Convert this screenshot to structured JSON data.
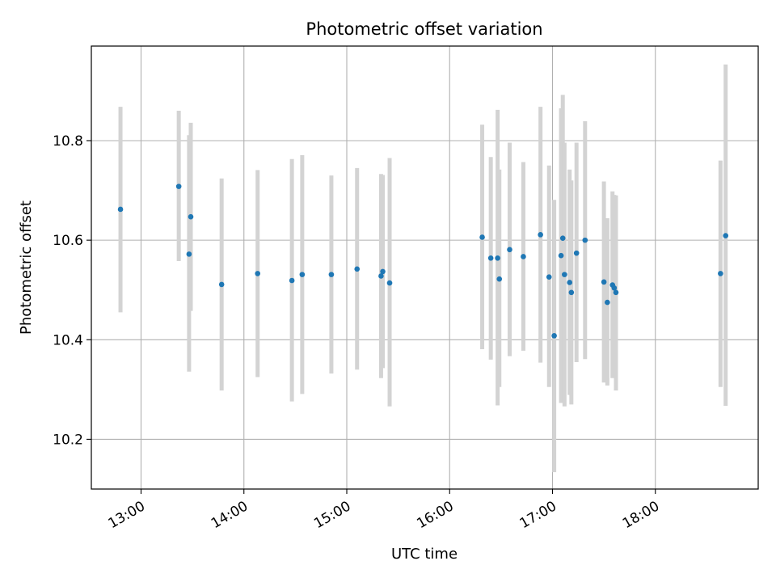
{
  "chart_data": {
    "type": "scatter",
    "title": "Photometric offset variation",
    "xlabel": "UTC time",
    "ylabel": "Photometric offset",
    "grid": true,
    "x_ticks": [
      "13:00",
      "14:00",
      "15:00",
      "16:00",
      "17:00",
      "18:00"
    ],
    "y_ticks": [
      "10.2",
      "10.4",
      "10.6",
      "10.8"
    ],
    "xlim": [
      "12:31",
      "19:00"
    ],
    "ylim": [
      10.1,
      10.99
    ],
    "point_color": "#1f77b4",
    "errorbar_color": "#d3d3d3",
    "points": [
      {
        "x": "12:48",
        "y": 10.662,
        "lo": 10.455,
        "hi": 10.868
      },
      {
        "x": "13:22",
        "y": 10.708,
        "lo": 10.558,
        "hi": 10.86
      },
      {
        "x": "13:28",
        "y": 10.572,
        "lo": 10.336,
        "hi": 10.811
      },
      {
        "x": "13:29",
        "y": 10.647,
        "lo": 10.458,
        "hi": 10.836
      },
      {
        "x": "13:47",
        "y": 10.511,
        "lo": 10.298,
        "hi": 10.724
      },
      {
        "x": "14:08",
        "y": 10.533,
        "lo": 10.325,
        "hi": 10.741
      },
      {
        "x": "14:28",
        "y": 10.519,
        "lo": 10.276,
        "hi": 10.763
      },
      {
        "x": "14:34",
        "y": 10.531,
        "lo": 10.291,
        "hi": 10.771
      },
      {
        "x": "14:51",
        "y": 10.531,
        "lo": 10.332,
        "hi": 10.73
      },
      {
        "x": "15:06",
        "y": 10.542,
        "lo": 10.34,
        "hi": 10.745
      },
      {
        "x": "15:20",
        "y": 10.528,
        "lo": 10.323,
        "hi": 10.733
      },
      {
        "x": "15:21",
        "y": 10.537,
        "lo": 10.343,
        "hi": 10.731
      },
      {
        "x": "15:25",
        "y": 10.514,
        "lo": 10.266,
        "hi": 10.765
      },
      {
        "x": "16:19",
        "y": 10.606,
        "lo": 10.381,
        "hi": 10.832
      },
      {
        "x": "16:24",
        "y": 10.564,
        "lo": 10.36,
        "hi": 10.767
      },
      {
        "x": "16:28",
        "y": 10.564,
        "lo": 10.268,
        "hi": 10.862
      },
      {
        "x": "16:29",
        "y": 10.522,
        "lo": 10.305,
        "hi": 10.742
      },
      {
        "x": "16:35",
        "y": 10.581,
        "lo": 10.367,
        "hi": 10.796
      },
      {
        "x": "16:43",
        "y": 10.567,
        "lo": 10.378,
        "hi": 10.757
      },
      {
        "x": "16:53",
        "y": 10.611,
        "lo": 10.354,
        "hi": 10.868
      },
      {
        "x": "16:58",
        "y": 10.526,
        "lo": 10.305,
        "hi": 10.75
      },
      {
        "x": "17:01",
        "y": 10.408,
        "lo": 10.134,
        "hi": 10.681
      },
      {
        "x": "17:05",
        "y": 10.569,
        "lo": 10.273,
        "hi": 10.865
      },
      {
        "x": "17:06",
        "y": 10.604,
        "lo": 10.317,
        "hi": 10.892
      },
      {
        "x": "17:07",
        "y": 10.531,
        "lo": 10.266,
        "hi": 10.796
      },
      {
        "x": "17:10",
        "y": 10.515,
        "lo": 10.289,
        "hi": 10.742
      },
      {
        "x": "17:11",
        "y": 10.495,
        "lo": 10.27,
        "hi": 10.72
      },
      {
        "x": "17:14",
        "y": 10.574,
        "lo": 10.355,
        "hi": 10.796
      },
      {
        "x": "17:19",
        "y": 10.6,
        "lo": 10.361,
        "hi": 10.839
      },
      {
        "x": "17:30",
        "y": 10.516,
        "lo": 10.314,
        "hi": 10.718
      },
      {
        "x": "17:32",
        "y": 10.475,
        "lo": 10.308,
        "hi": 10.644
      },
      {
        "x": "17:35",
        "y": 10.51,
        "lo": 10.323,
        "hi": 10.698
      },
      {
        "x": "17:36",
        "y": 10.504,
        "lo": 10.325,
        "hi": 10.691
      },
      {
        "x": "17:37",
        "y": 10.495,
        "lo": 10.298,
        "hi": 10.69
      },
      {
        "x": "18:38",
        "y": 10.533,
        "lo": 10.305,
        "hi": 10.76
      },
      {
        "x": "18:41",
        "y": 10.609,
        "lo": 10.267,
        "hi": 10.953
      }
    ]
  }
}
